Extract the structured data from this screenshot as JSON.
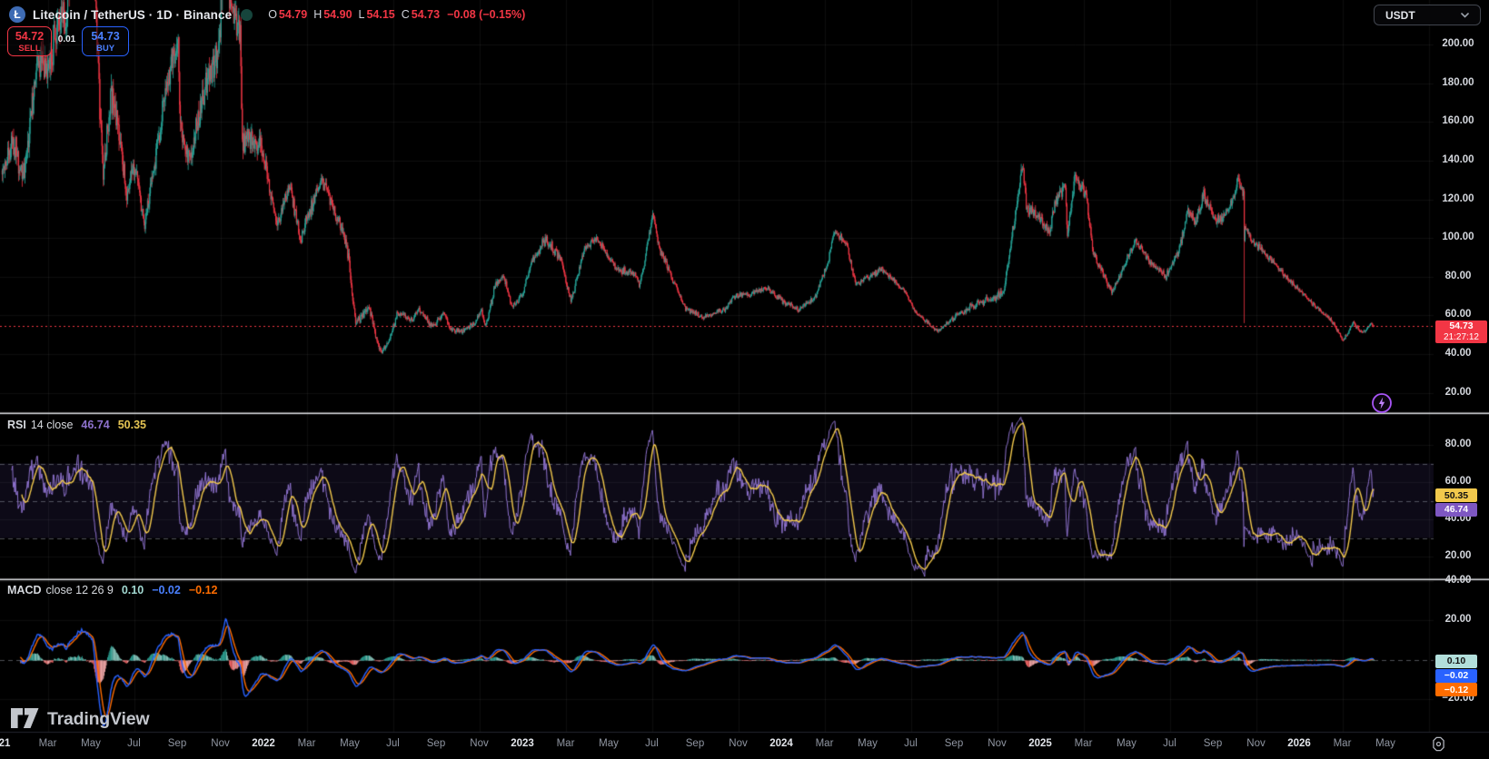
{
  "header": {
    "logo_glyph": "Ł",
    "symbol_title": "Litecoin / TetherUS · 1D · Binance",
    "ohlc": {
      "o_label": "O",
      "o": "54.79",
      "h_label": "H",
      "h": "54.90",
      "l_label": "L",
      "l": "54.15",
      "c_label": "C",
      "c": "54.73",
      "change": "−0.08 (−0.15%)"
    },
    "sell": {
      "price": "54.72",
      "label": "SELL"
    },
    "spread": "0.01",
    "buy": {
      "price": "54.73",
      "label": "BUY"
    }
  },
  "top_right": {
    "currency": "USDT"
  },
  "price_axis": {
    "ticks": [
      {
        "label": "200.00",
        "value": 200
      },
      {
        "label": "180.00",
        "value": 180
      },
      {
        "label": "160.00",
        "value": 160
      },
      {
        "label": "140.00",
        "value": 140
      },
      {
        "label": "120.00",
        "value": 120
      },
      {
        "label": "100.00",
        "value": 100
      },
      {
        "label": "80.00",
        "value": 80
      },
      {
        "label": "60.00",
        "value": 60
      },
      {
        "label": "40.00",
        "value": 40
      },
      {
        "label": "20.00",
        "value": 20
      }
    ],
    "last_price_badge": {
      "price": "54.73",
      "countdown": "21:27:12"
    }
  },
  "rsi_panel": {
    "title": "RSI",
    "params": "14 close",
    "value_rsi": "46.74",
    "value_ma": "50.35",
    "ticks": [
      {
        "label": "80.00",
        "value": 80
      },
      {
        "label": "60.00",
        "value": 60
      },
      {
        "label": "40.00",
        "value": 40
      },
      {
        "label": "20.00",
        "value": 20
      }
    ],
    "badges": {
      "ma": "50.35",
      "rsi": "46.74"
    }
  },
  "macd_panel": {
    "title": "MACD",
    "params": "close 12 26 9",
    "value_hist": "0.10",
    "value_macd": "−0.02",
    "value_signal": "−0.12",
    "ticks": [
      {
        "label": "40.00",
        "value": 40
      },
      {
        "label": "20.00",
        "value": 20
      },
      {
        "label": "−20.00",
        "value": -20
      }
    ],
    "badges": {
      "hist": "0.10",
      "macd": "−0.02",
      "signal": "−0.12"
    }
  },
  "time_axis": {
    "labels": [
      {
        "t": "21",
        "yr": true
      },
      {
        "t": "Mar"
      },
      {
        "t": "May"
      },
      {
        "t": "Jul"
      },
      {
        "t": "Sep"
      },
      {
        "t": "Nov"
      },
      {
        "t": "2022",
        "yr": true
      },
      {
        "t": "Mar"
      },
      {
        "t": "May"
      },
      {
        "t": "Jul"
      },
      {
        "t": "Sep"
      },
      {
        "t": "Nov"
      },
      {
        "t": "2023",
        "yr": true
      },
      {
        "t": "Mar"
      },
      {
        "t": "May"
      },
      {
        "t": "Jul"
      },
      {
        "t": "Sep"
      },
      {
        "t": "Nov"
      },
      {
        "t": "2024",
        "yr": true
      },
      {
        "t": "Mar"
      },
      {
        "t": "May"
      },
      {
        "t": "Jul"
      },
      {
        "t": "Sep"
      },
      {
        "t": "Nov"
      },
      {
        "t": "2025",
        "yr": true
      },
      {
        "t": "Mar"
      },
      {
        "t": "May"
      },
      {
        "t": "Jul"
      },
      {
        "t": "Sep"
      },
      {
        "t": "Nov"
      },
      {
        "t": "2026",
        "yr": true
      },
      {
        "t": "Mar"
      },
      {
        "t": "May"
      }
    ]
  },
  "watermark": "TradingView",
  "colors": {
    "up": "#26A69A",
    "down": "#F23645",
    "rsi_line": "#8E72CE",
    "rsi_ma": "#F2C94C",
    "macd_line": "#2962FF",
    "signal_line": "#FF6D00",
    "hist_up": "#2FA99B",
    "hist_up_soft": "#8FD0C6",
    "hist_dn": "#FF6B6B",
    "hist_dn_soft": "#FFB1B1",
    "last_price": "#F23645"
  },
  "chart_data": {
    "type": "candlestick",
    "title": "Litecoin / TetherUS · 1D · Binance",
    "timeframe": "1D",
    "start_date": "2021-01-01",
    "days": 1926,
    "price_axis_range": [
      20,
      223
    ],
    "grid": true,
    "last_candle": {
      "open": 54.79,
      "high": 54.9,
      "low": 54.15,
      "close": 54.73,
      "change": -0.08,
      "change_pct": -0.15
    },
    "close_keypoints": [
      [
        0,
        135
      ],
      [
        14,
        150
      ],
      [
        31,
        132
      ],
      [
        50,
        195
      ],
      [
        63,
        185
      ],
      [
        73,
        205
      ],
      [
        90,
        218
      ],
      [
        106,
        265
      ],
      [
        127,
        290
      ],
      [
        131,
        225
      ],
      [
        138,
        160
      ],
      [
        142,
        132
      ],
      [
        153,
        175
      ],
      [
        162,
        160
      ],
      [
        175,
        122
      ],
      [
        185,
        138
      ],
      [
        200,
        106
      ],
      [
        216,
        145
      ],
      [
        231,
        178
      ],
      [
        247,
        205
      ],
      [
        250,
        158
      ],
      [
        263,
        140
      ],
      [
        277,
        165
      ],
      [
        292,
        188
      ],
      [
        304,
        198
      ],
      [
        313,
        268
      ],
      [
        319,
        222
      ],
      [
        334,
        205
      ],
      [
        337,
        148
      ],
      [
        348,
        152
      ],
      [
        365,
        146
      ],
      [
        386,
        106
      ],
      [
        403,
        128
      ],
      [
        419,
        98
      ],
      [
        425,
        108
      ],
      [
        448,
        128
      ],
      [
        459,
        122
      ],
      [
        484,
        96
      ],
      [
        493,
        66
      ],
      [
        496,
        56
      ],
      [
        515,
        64
      ],
      [
        528,
        44
      ],
      [
        533,
        41
      ],
      [
        546,
        50
      ],
      [
        554,
        61
      ],
      [
        575,
        57
      ],
      [
        584,
        63
      ],
      [
        604,
        54
      ],
      [
        620,
        61
      ],
      [
        629,
        53
      ],
      [
        647,
        52
      ],
      [
        663,
        56
      ],
      [
        673,
        63
      ],
      [
        678,
        54
      ],
      [
        693,
        77
      ],
      [
        704,
        80
      ],
      [
        716,
        64
      ],
      [
        730,
        71
      ],
      [
        744,
        88
      ],
      [
        762,
        99
      ],
      [
        782,
        91
      ],
      [
        798,
        67
      ],
      [
        817,
        94
      ],
      [
        834,
        100
      ],
      [
        861,
        84
      ],
      [
        890,
        81
      ],
      [
        895,
        75
      ],
      [
        913,
        112
      ],
      [
        923,
        94
      ],
      [
        958,
        64
      ],
      [
        983,
        59
      ],
      [
        1014,
        63
      ],
      [
        1027,
        70
      ],
      [
        1048,
        71
      ],
      [
        1073,
        74
      ],
      [
        1097,
        67
      ],
      [
        1117,
        63
      ],
      [
        1140,
        69
      ],
      [
        1159,
        88
      ],
      [
        1167,
        104
      ],
      [
        1185,
        97
      ],
      [
        1198,
        76
      ],
      [
        1235,
        84
      ],
      [
        1270,
        71
      ],
      [
        1281,
        62
      ],
      [
        1312,
        52
      ],
      [
        1344,
        61
      ],
      [
        1369,
        66
      ],
      [
        1391,
        69
      ],
      [
        1405,
        72
      ],
      [
        1413,
        90
      ],
      [
        1432,
        138
      ],
      [
        1437,
        118
      ],
      [
        1445,
        113
      ],
      [
        1470,
        104
      ],
      [
        1481,
        122
      ],
      [
        1492,
        126
      ],
      [
        1495,
        102
      ],
      [
        1505,
        132
      ],
      [
        1521,
        122
      ],
      [
        1531,
        92
      ],
      [
        1557,
        72
      ],
      [
        1573,
        84
      ],
      [
        1590,
        99
      ],
      [
        1612,
        87
      ],
      [
        1633,
        80
      ],
      [
        1652,
        94
      ],
      [
        1663,
        114
      ],
      [
        1675,
        108
      ],
      [
        1686,
        122
      ],
      [
        1704,
        108
      ],
      [
        1723,
        116
      ],
      [
        1735,
        130
      ],
      [
        1742,
        122
      ],
      [
        1743,
        106
      ],
      [
        1753,
        99
      ],
      [
        1767,
        94
      ],
      [
        1785,
        87
      ],
      [
        1804,
        79
      ],
      [
        1826,
        71
      ],
      [
        1845,
        64
      ],
      [
        1866,
        57
      ],
      [
        1882,
        47
      ],
      [
        1896,
        56
      ],
      [
        1909,
        51
      ],
      [
        1921,
        56
      ],
      [
        1925,
        54.73
      ]
    ],
    "volatility_keypoints": [
      [
        0,
        0.065
      ],
      [
        130,
        0.075
      ],
      [
        200,
        0.055
      ],
      [
        310,
        0.06
      ],
      [
        420,
        0.045
      ],
      [
        530,
        0.05
      ],
      [
        620,
        0.035
      ],
      [
        730,
        0.035
      ],
      [
        900,
        0.03
      ],
      [
        1000,
        0.028
      ],
      [
        1150,
        0.028
      ],
      [
        1300,
        0.025
      ],
      [
        1410,
        0.045
      ],
      [
        1440,
        0.04
      ],
      [
        1520,
        0.035
      ],
      [
        1600,
        0.028
      ],
      [
        1740,
        0.035
      ],
      [
        1790,
        0.028
      ],
      [
        1925,
        0.025
      ]
    ],
    "flash_crash": {
      "day": 1743,
      "wick_low": 56
    },
    "indicators": {
      "rsi": {
        "period": 14,
        "last": 46.74,
        "ma_last": 50.35,
        "bands": [
          70,
          50,
          30
        ],
        "axis_range": [
          80,
          20
        ]
      },
      "macd": {
        "fast": 12,
        "slow": 26,
        "signal": 9,
        "last_hist": 0.1,
        "last_macd": -0.02,
        "last_signal": -0.12,
        "axis_ticks": [
          40,
          20,
          -20
        ]
      }
    }
  }
}
